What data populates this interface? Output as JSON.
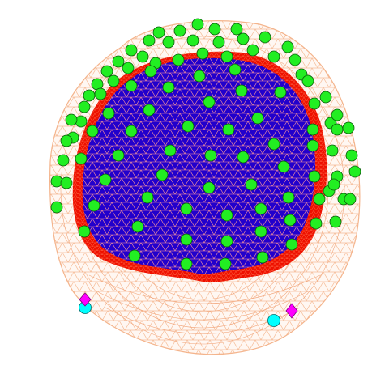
{
  "colors": {
    "background": "#ffffff",
    "scalp_mesh": "#f4b48c",
    "skull_fill": "#ee1100",
    "skull_mesh": "#ff5a3a",
    "brain_fill": "#2200cc",
    "brain_mesh": "#ff8a8a",
    "electrode_fill": "#22ee22",
    "electrode_stroke": "#0a5a0a",
    "fiducial_circle": "#00ffff",
    "fiducial_diamond": "#ff00ff"
  },
  "layers": [
    "scalp-mesh",
    "skull-surface",
    "brain-surface",
    "electrodes",
    "fiducials"
  ],
  "electrode_marker": "sphere",
  "fiducial_markers": [
    "cyan-circle",
    "magenta-diamond"
  ]
}
